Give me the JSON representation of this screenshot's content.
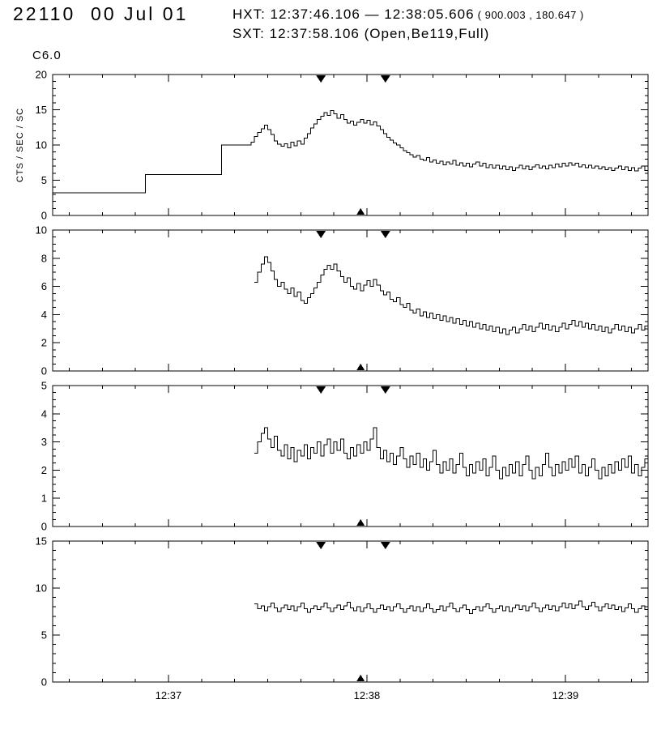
{
  "header": {
    "title": "22110  00 Jul 01",
    "hxt_line": "HXT: 12:37:46.106 — 12:38:05.606",
    "hxt_coords": " ( 900.003 , 180.647 )",
    "sxt_line": "SXT: 12:37:58.106 (Open,Be119,Full)",
    "goes_class": "C6.0"
  },
  "chart_data": {
    "type": "line",
    "style": "histogram-step",
    "title": "",
    "xlabel": "",
    "x_axis": {
      "range_s": [
        25,
        205
      ],
      "minor_step_s": 10,
      "ticks": [
        {
          "t": 60,
          "label": "12:37"
        },
        {
          "t": 120,
          "label": "12:38"
        },
        {
          "t": 180,
          "label": "12:39"
        }
      ]
    },
    "markers": {
      "hxt_start_t": 106.1,
      "hxt_end_t": 125.6,
      "sxt_t": 118.1
    },
    "panels": [
      {
        "name": "panel-1",
        "ylabel": "CTS / SEC / SC",
        "ylim": [
          0,
          20
        ],
        "y_minor_step": 1,
        "yticks": [
          {
            "v": 0,
            "label": "0"
          },
          {
            "v": 5,
            "label": "5"
          },
          {
            "v": 10,
            "label": "10"
          },
          {
            "v": 15,
            "label": "15"
          },
          {
            "v": 20,
            "label": "20"
          }
        ],
        "pre_steps": [
          {
            "t0": 25,
            "v": 3.2
          },
          {
            "t0": 53,
            "v": 5.8
          },
          {
            "t0": 76,
            "v": 10.0
          }
        ],
        "t_start": 85,
        "dt": 1,
        "values": [
          10.4,
          11.2,
          11.8,
          12.3,
          12.8,
          12.2,
          11.5,
          10.6,
          10.1,
          9.8,
          10.2,
          9.6,
          10.4,
          9.9,
          10.6,
          10.1,
          11.0,
          11.6,
          12.4,
          13.0,
          13.6,
          14.1,
          14.6,
          14.2,
          14.9,
          14.4,
          13.8,
          14.3,
          13.6,
          13.1,
          13.4,
          12.8,
          13.2,
          13.6,
          13.1,
          13.5,
          12.9,
          13.3,
          12.7,
          12.2,
          11.6,
          11.1,
          10.7,
          10.3,
          10.0,
          9.6,
          9.2,
          8.9,
          8.6,
          8.3,
          8.5,
          8.0,
          7.8,
          8.2,
          7.6,
          7.9,
          7.4,
          7.7,
          7.2,
          7.6,
          7.3,
          7.8,
          7.1,
          7.5,
          7.0,
          7.4,
          6.9,
          7.3,
          7.6,
          7.0,
          7.4,
          6.8,
          7.2,
          6.7,
          7.1,
          6.6,
          7.0,
          6.5,
          6.9,
          6.4,
          6.8,
          7.1,
          6.6,
          7.0,
          6.5,
          6.9,
          7.2,
          6.7,
          7.0,
          6.6,
          7.1,
          6.8,
          7.3,
          6.9,
          7.4,
          7.0,
          7.5,
          7.1,
          7.4,
          6.9,
          7.2,
          6.8,
          7.1,
          6.7,
          7.0,
          6.6,
          6.9,
          6.5,
          6.8,
          6.4,
          6.7,
          7.0,
          6.5,
          6.9,
          6.4,
          6.8,
          6.3,
          6.7,
          7.0,
          6.4
        ]
      },
      {
        "name": "panel-2",
        "ylabel": "",
        "ylim": [
          0,
          10
        ],
        "y_minor_step": 0.5,
        "yticks": [
          {
            "v": 0,
            "label": "0"
          },
          {
            "v": 2,
            "label": "2"
          },
          {
            "v": 4,
            "label": "4"
          },
          {
            "v": 6,
            "label": "6"
          },
          {
            "v": 8,
            "label": "8"
          },
          {
            "v": 10,
            "label": "10"
          }
        ],
        "t_start": 86,
        "dt": 1,
        "values": [
          6.3,
          7.0,
          7.6,
          8.1,
          7.7,
          7.1,
          6.5,
          6.0,
          6.3,
          5.8,
          5.5,
          5.9,
          5.3,
          5.6,
          5.0,
          4.8,
          5.2,
          5.5,
          5.9,
          6.3,
          6.8,
          7.2,
          7.5,
          7.2,
          7.6,
          7.1,
          6.7,
          6.3,
          6.6,
          6.0,
          5.8,
          6.2,
          5.7,
          6.1,
          6.4,
          6.0,
          6.5,
          6.1,
          5.7,
          5.4,
          5.6,
          5.1,
          4.9,
          5.2,
          4.7,
          4.5,
          4.8,
          4.3,
          4.1,
          4.4,
          3.9,
          4.2,
          3.8,
          4.1,
          3.7,
          4.0,
          3.6,
          3.9,
          3.5,
          3.8,
          3.4,
          3.7,
          3.3,
          3.6,
          3.2,
          3.5,
          3.1,
          3.4,
          3.0,
          3.3,
          2.9,
          3.2,
          2.8,
          3.1,
          2.7,
          3.0,
          2.6,
          2.9,
          3.1,
          2.7,
          3.0,
          3.3,
          2.9,
          3.2,
          2.8,
          3.1,
          3.4,
          3.0,
          3.3,
          2.9,
          3.2,
          2.8,
          3.1,
          3.4,
          3.0,
          3.3,
          3.6,
          3.2,
          3.5,
          3.1,
          3.4,
          3.0,
          3.3,
          2.9,
          3.2,
          2.8,
          3.1,
          2.7,
          3.0,
          3.3,
          2.9,
          3.2,
          2.8,
          3.1,
          2.7,
          3.0,
          3.3,
          2.9,
          3.2
        ]
      },
      {
        "name": "panel-3",
        "ylabel": "",
        "ylim": [
          0,
          5
        ],
        "y_minor_step": 0.25,
        "yticks": [
          {
            "v": 0,
            "label": "0"
          },
          {
            "v": 1,
            "label": "1"
          },
          {
            "v": 2,
            "label": "2"
          },
          {
            "v": 3,
            "label": "3"
          },
          {
            "v": 4,
            "label": "4"
          },
          {
            "v": 5,
            "label": "5"
          }
        ],
        "t_start": 86,
        "dt": 1,
        "values": [
          2.6,
          3.0,
          3.3,
          3.5,
          3.1,
          2.8,
          3.2,
          2.7,
          2.5,
          2.9,
          2.4,
          2.8,
          2.3,
          2.7,
          2.5,
          2.9,
          2.4,
          2.8,
          2.6,
          3.0,
          2.5,
          2.9,
          3.1,
          2.6,
          3.0,
          2.7,
          3.1,
          2.6,
          2.4,
          2.8,
          2.5,
          2.9,
          2.6,
          3.0,
          2.7,
          3.1,
          3.5,
          2.8,
          2.4,
          2.7,
          2.3,
          2.6,
          2.2,
          2.5,
          2.8,
          2.4,
          2.1,
          2.5,
          2.2,
          2.6,
          2.1,
          2.4,
          2.0,
          2.3,
          2.7,
          2.2,
          1.9,
          2.3,
          2.0,
          2.4,
          1.9,
          2.2,
          2.6,
          2.1,
          1.8,
          2.2,
          1.9,
          2.3,
          2.0,
          2.4,
          1.8,
          2.1,
          2.5,
          2.0,
          1.7,
          2.1,
          1.8,
          2.2,
          1.9,
          2.3,
          1.8,
          2.2,
          2.5,
          2.0,
          1.7,
          2.1,
          1.8,
          2.2,
          2.6,
          2.1,
          1.8,
          2.2,
          1.9,
          2.3,
          2.0,
          2.4,
          2.1,
          2.5,
          1.9,
          2.2,
          1.8,
          2.1,
          2.4,
          2.0,
          1.7,
          2.1,
          1.8,
          2.2,
          1.9,
          2.3,
          2.0,
          2.4,
          2.1,
          2.5,
          1.9,
          2.2,
          1.8,
          2.1,
          2.4
        ]
      },
      {
        "name": "panel-4",
        "ylabel": "",
        "ylim": [
          0,
          15
        ],
        "y_minor_step": 1,
        "yticks": [
          {
            "v": 0,
            "label": "0"
          },
          {
            "v": 5,
            "label": "5"
          },
          {
            "v": 10,
            "label": "10"
          },
          {
            "v": 15,
            "label": "15"
          }
        ],
        "t_start": 86,
        "dt": 1,
        "values": [
          8.3,
          7.8,
          8.1,
          7.6,
          8.0,
          8.4,
          7.9,
          7.5,
          7.9,
          8.2,
          7.7,
          8.1,
          7.6,
          8.0,
          8.4,
          7.8,
          7.4,
          7.8,
          8.1,
          7.7,
          8.0,
          8.4,
          7.9,
          7.5,
          7.9,
          8.2,
          7.7,
          8.1,
          8.5,
          7.9,
          7.6,
          8.0,
          7.5,
          7.9,
          8.3,
          7.8,
          7.4,
          7.8,
          8.2,
          7.7,
          8.0,
          7.6,
          8.0,
          8.3,
          7.8,
          7.4,
          7.8,
          8.1,
          7.6,
          8.0,
          7.5,
          7.9,
          8.3,
          7.8,
          7.4,
          7.7,
          8.1,
          7.6,
          8.0,
          8.4,
          7.8,
          7.5,
          7.9,
          8.2,
          7.7,
          7.3,
          7.7,
          8.0,
          7.6,
          8.0,
          8.3,
          7.8,
          7.4,
          7.8,
          8.1,
          7.6,
          8.0,
          7.5,
          7.9,
          8.2,
          7.7,
          8.1,
          7.6,
          8.0,
          8.4,
          7.9,
          7.5,
          7.9,
          8.2,
          7.7,
          8.1,
          7.6,
          8.0,
          8.4,
          7.9,
          8.3,
          7.8,
          8.2,
          8.6,
          8.0,
          7.7,
          8.1,
          8.5,
          8.0,
          7.6,
          8.0,
          8.3,
          7.8,
          8.2,
          7.7,
          8.0,
          7.5,
          7.9,
          8.3,
          7.8,
          7.4,
          7.8,
          8.1,
          7.7
        ]
      }
    ]
  }
}
